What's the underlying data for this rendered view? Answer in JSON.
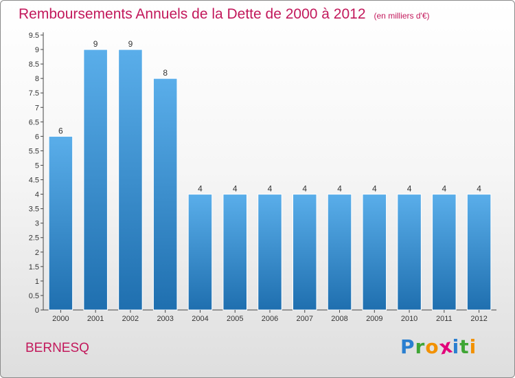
{
  "chart_data": {
    "type": "bar",
    "title": "Remboursements Annuels de la Dette de 2000 à 2012",
    "subtitle": "(en milliers d'€)",
    "xlabel": "",
    "ylabel": "",
    "categories": [
      "2000",
      "2001",
      "2002",
      "2003",
      "2004",
      "2005",
      "2006",
      "2007",
      "2008",
      "2009",
      "2010",
      "2011",
      "2012"
    ],
    "values": [
      6,
      9,
      9,
      8,
      4,
      4,
      4,
      4,
      4,
      4,
      4,
      4,
      4
    ],
    "data_labels": [
      "6",
      "9",
      "9",
      "8",
      "4",
      "4",
      "4",
      "4",
      "4",
      "4",
      "4",
      "4",
      "4"
    ],
    "ylim": [
      0,
      9.5
    ],
    "yticks": [
      0,
      0.5,
      1,
      1.5,
      2,
      2.5,
      3,
      3.5,
      4,
      4.5,
      5,
      5.5,
      6,
      6.5,
      7,
      7.5,
      8,
      8.5,
      9,
      9.5
    ],
    "ytick_labels": [
      "0",
      "0.5",
      "1",
      "1.5",
      "2",
      "2.5",
      "3",
      "3.5",
      "4",
      "4.5",
      "5",
      "5.5",
      "6",
      "6.5",
      "7",
      "7.5",
      "8",
      "8.5",
      "9",
      "9.5"
    ],
    "grid": false,
    "legend": "none",
    "bar_color_top": "#5aaeea",
    "bar_color_bottom": "#1f6faf"
  },
  "footer": {
    "commune": "BERNESQ"
  },
  "brand": {
    "letters": [
      {
        "char": "P",
        "color": "#2a7fd0"
      },
      {
        "char": "r",
        "color": "#3fa535"
      },
      {
        "char": "o",
        "color": "#f29100"
      },
      {
        "char": "x",
        "color": "#e2007a"
      },
      {
        "char": "i",
        "color": "#2a7fd0"
      },
      {
        "char": "t",
        "color": "#3fa535"
      },
      {
        "char": "i",
        "color": "#f29100"
      }
    ]
  },
  "colors": {
    "title": "#c2185b",
    "axis": "#444444"
  }
}
